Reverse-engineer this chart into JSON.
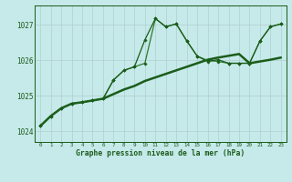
{
  "background_color": "#c6e9e9",
  "grid_color": "#b0d0d0",
  "line_color_dark": "#1a5c1a",
  "line_color_mid": "#2d7a2d",
  "title": "Graphe pression niveau de la mer (hPa)",
  "xlim": [
    -0.5,
    23.5
  ],
  "ylim": [
    1023.7,
    1027.55
  ],
  "yticks": [
    1024,
    1025,
    1026,
    1027
  ],
  "xticks": [
    0,
    1,
    2,
    3,
    4,
    5,
    6,
    7,
    8,
    9,
    10,
    11,
    12,
    13,
    14,
    15,
    16,
    17,
    18,
    19,
    20,
    21,
    22,
    23
  ],
  "line1_x": [
    0,
    1,
    2,
    3,
    4,
    5,
    6,
    7,
    8,
    9,
    10,
    11,
    12,
    13,
    14,
    15,
    16,
    17,
    18,
    19,
    20,
    21,
    22,
    23
  ],
  "line1_y": [
    1024.15,
    1024.43,
    1024.65,
    1024.78,
    1024.82,
    1024.87,
    1024.92,
    1025.05,
    1025.18,
    1025.28,
    1025.42,
    1025.52,
    1025.62,
    1025.72,
    1025.82,
    1025.92,
    1026.02,
    1026.08,
    1026.13,
    1026.18,
    1025.92,
    1025.97,
    1026.02,
    1026.08
  ],
  "line2_x": [
    0,
    1,
    2,
    3,
    4,
    5,
    6,
    7,
    8,
    9,
    10,
    11,
    12,
    13,
    14,
    15,
    16,
    17,
    18,
    19,
    20,
    21,
    22,
    23
  ],
  "line2_y": [
    1024.15,
    1024.43,
    1024.65,
    1024.78,
    1024.82,
    1024.87,
    1024.92,
    1025.45,
    1025.72,
    1025.82,
    1025.92,
    1027.18,
    1026.95,
    1027.03,
    1026.55,
    1026.12,
    1026.0,
    1025.97,
    1025.92,
    1025.92,
    1025.92,
    1026.55,
    1026.95,
    1027.03
  ],
  "line3_x": [
    0,
    1,
    2,
    3,
    4,
    5,
    6,
    7,
    8,
    9,
    10,
    11,
    12,
    13,
    14,
    15,
    16,
    17,
    18,
    19,
    20,
    21,
    22,
    23
  ],
  "line3_y": [
    1024.15,
    1024.43,
    1024.65,
    1024.78,
    1024.82,
    1024.87,
    1024.92,
    1025.45,
    1025.72,
    1025.82,
    1026.58,
    1027.18,
    1026.95,
    1027.03,
    1026.55,
    1026.12,
    1025.97,
    1026.02,
    1025.92,
    1025.92,
    1025.92,
    1026.55,
    1026.95,
    1027.03
  ]
}
